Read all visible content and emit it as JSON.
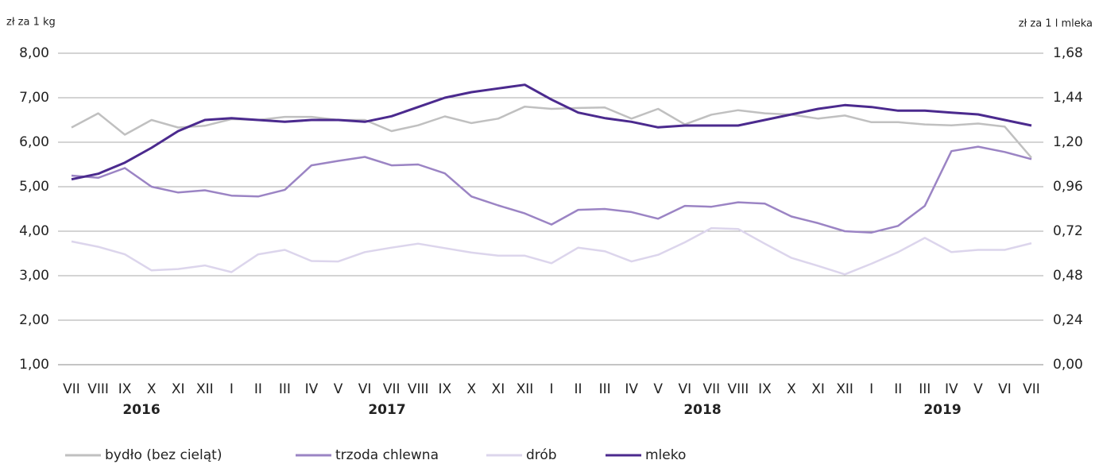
{
  "chart_data": {
    "type": "line",
    "y_axis_label": "zł za 1 kg",
    "y2_axis_label": "zł za 1 l mleka",
    "categories": [
      "VII",
      "VIII",
      "IX",
      "X",
      "XI",
      "XII",
      "I",
      "II",
      "III",
      "IV",
      "V",
      "VI",
      "VII",
      "VIII",
      "IX",
      "X",
      "XI",
      "XII",
      "I",
      "II",
      "III",
      "IV",
      "V",
      "VI",
      "VII",
      "VIII",
      "IX",
      "X",
      "XI",
      "XII",
      "I",
      "II",
      "III",
      "IV",
      "V",
      "VI",
      "VII"
    ],
    "year_labels": [
      "2016",
      "2017",
      "2018",
      "2019"
    ],
    "series": [
      {
        "name": "bydło (bez cieląt)",
        "color": "#c0c0c0",
        "values": [
          6.33,
          6.65,
          6.17,
          6.5,
          6.33,
          6.37,
          6.52,
          6.5,
          6.57,
          6.57,
          6.5,
          6.5,
          6.25,
          6.38,
          6.58,
          6.43,
          6.53,
          6.8,
          6.75,
          6.77,
          6.78,
          6.53,
          6.75,
          6.4,
          6.62,
          6.72,
          6.65,
          6.62,
          6.53,
          6.6,
          6.45,
          6.45,
          6.4,
          6.38,
          6.42,
          6.35,
          5.65
        ]
      },
      {
        "name": "trzoda chlewna",
        "color": "#9b84c4",
        "values": [
          5.25,
          5.2,
          5.42,
          5.0,
          4.87,
          4.92,
          4.8,
          4.78,
          4.93,
          5.48,
          5.58,
          5.67,
          5.48,
          5.5,
          5.3,
          4.78,
          4.58,
          4.4,
          4.15,
          4.48,
          4.5,
          4.43,
          4.28,
          4.57,
          4.55,
          4.65,
          4.62,
          4.33,
          4.18,
          4.0,
          3.97,
          4.12,
          4.57,
          5.8,
          5.9,
          5.78,
          5.62
        ]
      },
      {
        "name": "drób",
        "color": "#dcd5ec",
        "values": [
          3.77,
          3.65,
          3.48,
          3.12,
          3.15,
          3.23,
          3.08,
          3.48,
          3.58,
          3.33,
          3.32,
          3.53,
          3.63,
          3.72,
          3.62,
          3.52,
          3.45,
          3.45,
          3.28,
          3.63,
          3.55,
          3.32,
          3.47,
          3.75,
          4.07,
          4.05,
          3.72,
          3.4,
          3.22,
          3.03,
          3.27,
          3.53,
          3.85,
          3.53,
          3.58,
          3.58,
          3.73
        ]
      },
      {
        "name": "mleko",
        "color": "#4b2a8e",
        "axis": "y2",
        "values": [
          1.0,
          1.03,
          1.09,
          1.17,
          1.26,
          1.32,
          1.33,
          1.32,
          1.31,
          1.32,
          1.32,
          1.31,
          1.34,
          1.39,
          1.44,
          1.47,
          1.49,
          1.51,
          1.43,
          1.36,
          1.33,
          1.31,
          1.28,
          1.29,
          1.29,
          1.29,
          1.32,
          1.35,
          1.38,
          1.4,
          1.39,
          1.37,
          1.37,
          1.36,
          1.35,
          1.32,
          1.29
        ]
      }
    ],
    "ylim": [
      1,
      8
    ],
    "yticks": [
      {
        "value": 1,
        "label": "1,00"
      },
      {
        "value": 2,
        "label": "2,00"
      },
      {
        "value": 3,
        "label": "3,00"
      },
      {
        "value": 4,
        "label": "4,00"
      },
      {
        "value": 5,
        "label": "5,00"
      },
      {
        "value": 6,
        "label": "6,00"
      },
      {
        "value": 7,
        "label": "7,00"
      },
      {
        "value": 8,
        "label": "8,00"
      }
    ],
    "y2lim": [
      0,
      1.68
    ],
    "y2ticks": [
      {
        "value": 0,
        "label": "0,00"
      },
      {
        "value": 0.24,
        "label": "0,24"
      },
      {
        "value": 0.48,
        "label": "0,48"
      },
      {
        "value": 0.72,
        "label": "0,72"
      },
      {
        "value": 0.96,
        "label": "0,96"
      },
      {
        "value": 1.2,
        "label": "1,20"
      },
      {
        "value": 1.44,
        "label": "1,44"
      },
      {
        "value": 1.68,
        "label": "1,68"
      }
    ],
    "grid": true,
    "legend": "bottom"
  }
}
